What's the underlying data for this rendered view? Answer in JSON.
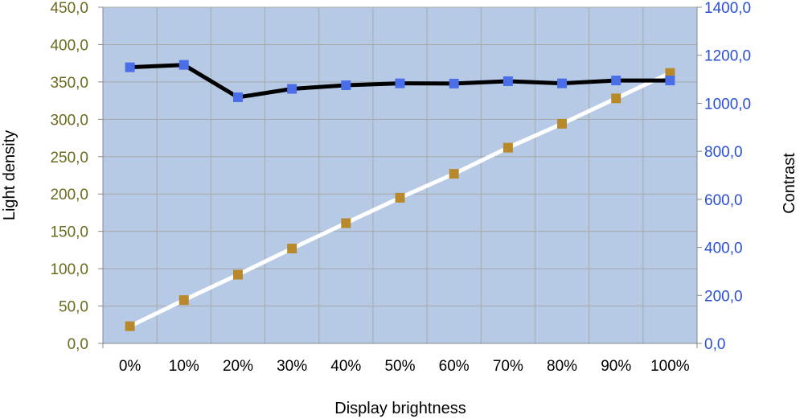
{
  "chart_data": {
    "type": "line",
    "xlabel": "Display brightness",
    "ylabel_left": "Light density",
    "ylabel_right": "Contrast",
    "categories": [
      "0%",
      "10%",
      "20%",
      "30%",
      "40%",
      "50%",
      "60%",
      "70%",
      "80%",
      "90%",
      "100%"
    ],
    "y_left": {
      "range": [
        0,
        450
      ],
      "ticks": [
        "0,0",
        "50,0",
        "100,0",
        "150,0",
        "200,0",
        "250,0",
        "300,0",
        "350,0",
        "400,0",
        "450,0"
      ]
    },
    "y_right": {
      "range": [
        0,
        1400
      ],
      "ticks": [
        "0,0",
        "200,0",
        "400,0",
        "600,0",
        "800,0",
        "1000,0",
        "1200,0",
        "1400,0"
      ]
    },
    "series": [
      {
        "axis": "left",
        "line_color": "#ffffff",
        "marker_color": "#b8892a",
        "values": [
          23,
          58,
          92,
          127,
          161,
          195,
          227,
          262,
          294,
          328,
          362
        ]
      },
      {
        "axis": "right",
        "line_color": "#000000",
        "marker_color": "#4a6ee8",
        "values": [
          1150,
          1160,
          1025,
          1060,
          1075,
          1083,
          1082,
          1092,
          1083,
          1095,
          1095
        ]
      }
    ],
    "grid": true,
    "plot_background": "#b6cae6",
    "grid_color": "#a8a8a8",
    "left_tick_color": "#6b6b1e",
    "right_tick_color": "#2a4fd6"
  }
}
